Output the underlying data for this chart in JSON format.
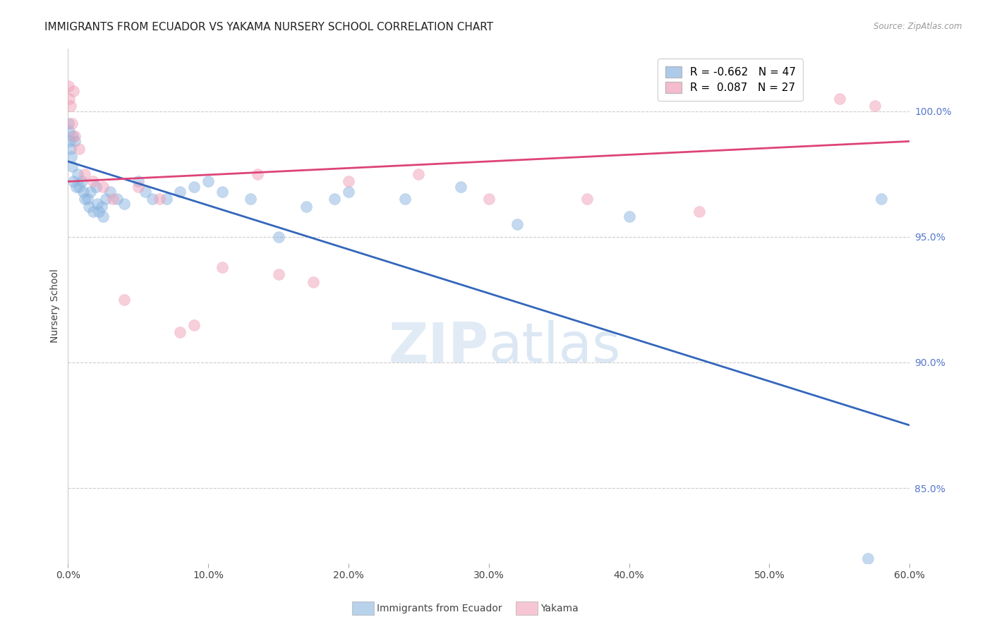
{
  "title": "IMMIGRANTS FROM ECUADOR VS YAKAMA NURSERY SCHOOL CORRELATION CHART",
  "source": "Source: ZipAtlas.com",
  "ylabel": "Nursery School",
  "legend_labels": [
    "Immigrants from Ecuador",
    "Yakama"
  ],
  "legend_r": [
    -0.662,
    0.087
  ],
  "legend_n": [
    47,
    27
  ],
  "blue_color": "#8ab4e0",
  "pink_color": "#f0a0b8",
  "blue_line_color": "#3366bb",
  "pink_line_color": "#dd4477",
  "xlim": [
    0.0,
    60.0
  ],
  "ylim": [
    82.0,
    102.5
  ],
  "yticks": [
    85.0,
    90.0,
    95.0,
    100.0
  ],
  "xticks": [
    0.0,
    10.0,
    20.0,
    30.0,
    40.0,
    50.0,
    60.0
  ],
  "blue_scatter_x": [
    0.05,
    0.1,
    0.15,
    0.2,
    0.25,
    0.3,
    0.35,
    0.4,
    0.5,
    0.6,
    0.7,
    0.8,
    1.0,
    1.1,
    1.2,
    1.4,
    1.5,
    1.6,
    1.8,
    2.0,
    2.1,
    2.2,
    2.4,
    2.5,
    2.7,
    3.0,
    3.5,
    4.0,
    5.0,
    5.5,
    6.0,
    7.0,
    8.0,
    9.0,
    10.0,
    11.0,
    13.0,
    15.0,
    17.0,
    19.0,
    20.0,
    24.0,
    28.0,
    32.0,
    40.0,
    57.0,
    58.0
  ],
  "blue_scatter_y": [
    99.5,
    99.2,
    98.8,
    98.5,
    98.2,
    97.8,
    99.0,
    97.2,
    98.8,
    97.0,
    97.5,
    97.0,
    97.2,
    96.8,
    96.5,
    96.5,
    96.2,
    96.8,
    96.0,
    97.0,
    96.3,
    96.0,
    96.2,
    95.8,
    96.5,
    96.8,
    96.5,
    96.3,
    97.2,
    96.8,
    96.5,
    96.5,
    96.8,
    97.0,
    97.2,
    96.8,
    96.5,
    95.0,
    96.2,
    96.5,
    96.8,
    96.5,
    97.0,
    95.5,
    95.8,
    82.2,
    96.5
  ],
  "pink_scatter_x": [
    0.05,
    0.1,
    0.2,
    0.3,
    0.4,
    0.5,
    0.8,
    1.2,
    1.8,
    2.5,
    3.2,
    4.0,
    5.0,
    6.5,
    8.0,
    9.0,
    11.0,
    13.5,
    15.0,
    17.5,
    20.0,
    25.0,
    30.0,
    37.0,
    45.0,
    55.0,
    57.5
  ],
  "pink_scatter_y": [
    101.0,
    100.5,
    100.2,
    99.5,
    100.8,
    99.0,
    98.5,
    97.5,
    97.2,
    97.0,
    96.5,
    92.5,
    97.0,
    96.5,
    91.2,
    91.5,
    93.8,
    97.5,
    93.5,
    93.2,
    97.2,
    97.5,
    96.5,
    96.5,
    96.0,
    100.5,
    100.2
  ],
  "blue_trendline_x": [
    0.0,
    60.0
  ],
  "blue_trendline_y": [
    98.0,
    87.5
  ],
  "pink_trendline_x": [
    0.0,
    60.0
  ],
  "pink_trendline_y": [
    97.2,
    98.8
  ],
  "title_fontsize": 11,
  "axis_label_fontsize": 10,
  "tick_fontsize": 10,
  "right_tick_color": "#5577cc",
  "background_color": "#ffffff"
}
